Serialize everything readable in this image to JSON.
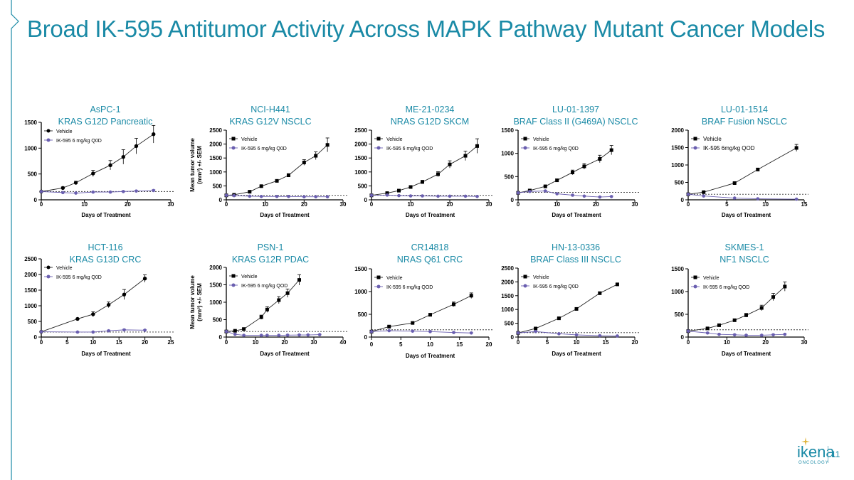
{
  "title": "Broad IK-595 Antitumor Activity Across MAPK Pathway Mutant Cancer Models",
  "page_number": "11",
  "logo": {
    "name": "ikena",
    "subtitle": "ONCOLOGY"
  },
  "colors": {
    "title": "#1a8aa6",
    "vehicle": "#000000",
    "treatment": "#6a5fb0",
    "frame": "#1a8aa6"
  },
  "chart_data": [
    {
      "type": "line",
      "model": "AsPC-1",
      "mutation": "KRAS G12D Pancreatic",
      "legend": [
        "Vehicle",
        "IK-595 6 mg/kg Q0D"
      ],
      "vehicle_marker": "circle",
      "xlabel": "Days of Treatment",
      "ylabel": "",
      "xlim": [
        0,
        30
      ],
      "xticks": [
        0,
        10,
        20,
        30
      ],
      "ylim": [
        0,
        1500
      ],
      "yticks": [
        0,
        500,
        1000,
        1500
      ],
      "baseline": 160,
      "series": [
        {
          "name": "Vehicle",
          "x": [
            0,
            5,
            8,
            12,
            16,
            19,
            22,
            26
          ],
          "y": [
            160,
            230,
            330,
            510,
            670,
            830,
            1040,
            1270
          ],
          "err": [
            0,
            20,
            30,
            60,
            90,
            140,
            150,
            170
          ]
        },
        {
          "name": "IK-595 6 mg/kg Q0D",
          "x": [
            0,
            5,
            8,
            12,
            16,
            19,
            22,
            26
          ],
          "y": [
            160,
            140,
            130,
            150,
            150,
            160,
            170,
            180
          ],
          "err": [
            0,
            10,
            10,
            10,
            10,
            10,
            10,
            15
          ]
        }
      ]
    },
    {
      "type": "line",
      "model": "NCI-H441",
      "mutation": "KRAS G12V NSCLC",
      "legend": [
        "Vehicle",
        "IK-595 6 mg/kg Q0D"
      ],
      "vehicle_marker": "square",
      "xlabel": "Days of Treatment",
      "ylabel": "Mean tumor volume (mm³) +/- SEM",
      "xlim": [
        0,
        30
      ],
      "xticks": [
        0,
        10,
        20,
        30
      ],
      "ylim": [
        0,
        2500
      ],
      "yticks": [
        0,
        500,
        1000,
        1500,
        2000,
        2500
      ],
      "baseline": 160,
      "series": [
        {
          "name": "Vehicle",
          "x": [
            0,
            2,
            6,
            9,
            13,
            16,
            20,
            23,
            26
          ],
          "y": [
            160,
            180,
            290,
            490,
            680,
            880,
            1340,
            1580,
            1970
          ],
          "err": [
            0,
            10,
            20,
            30,
            40,
            60,
            100,
            140,
            250
          ]
        },
        {
          "name": "IK-595 6 mg/kg Q0D",
          "x": [
            0,
            2,
            6,
            9,
            13,
            16,
            20,
            23,
            26
          ],
          "y": [
            160,
            150,
            130,
            120,
            120,
            120,
            110,
            110,
            110
          ],
          "err": [
            0,
            10,
            10,
            10,
            10,
            10,
            10,
            10,
            10
          ]
        }
      ]
    },
    {
      "type": "line",
      "model": "ME-21-0234",
      "mutation": "NRAS G12D SKCM",
      "legend": [
        "Vehicle",
        "IK-595 6 mg/kg QOD"
      ],
      "vehicle_marker": "square",
      "xlabel": "Days of Treatment",
      "ylabel": "",
      "xlim": [
        0,
        30
      ],
      "xticks": [
        0,
        10,
        20,
        30
      ],
      "ylim": [
        0,
        2500
      ],
      "yticks": [
        0,
        500,
        1000,
        1500,
        2000,
        2500
      ],
      "baseline": 160,
      "series": [
        {
          "name": "Vehicle",
          "x": [
            0,
            4,
            7,
            10,
            13,
            17,
            20,
            24,
            27
          ],
          "y": [
            160,
            240,
            330,
            460,
            640,
            920,
            1270,
            1580,
            1930
          ],
          "err": [
            0,
            20,
            30,
            40,
            60,
            90,
            130,
            170,
            260
          ]
        },
        {
          "name": "IK-595 6 mg/kg QOD",
          "x": [
            0,
            4,
            7,
            10,
            13,
            17,
            20,
            24,
            27
          ],
          "y": [
            160,
            170,
            150,
            140,
            140,
            130,
            130,
            130,
            120
          ],
          "err": [
            0,
            10,
            10,
            10,
            10,
            10,
            10,
            10,
            10
          ]
        }
      ]
    },
    {
      "type": "line",
      "model": "LU-01-1397",
      "mutation": "BRAF Class II (G469A) NSCLC",
      "legend": [
        "Vehicle",
        "IK-595 6 mg/kg Q0D"
      ],
      "vehicle_marker": "square",
      "xlabel": "Days of Treatment",
      "ylabel": "",
      "xlim": [
        0,
        30
      ],
      "xticks": [
        0,
        10,
        20,
        30
      ],
      "ylim": [
        0,
        1500
      ],
      "yticks": [
        0,
        500,
        1000,
        1500
      ],
      "baseline": 160,
      "series": [
        {
          "name": "Vehicle",
          "x": [
            0,
            3,
            7,
            10,
            14,
            17,
            21,
            24
          ],
          "y": [
            150,
            200,
            290,
            420,
            590,
            720,
            880,
            1070
          ],
          "err": [
            0,
            15,
            20,
            30,
            50,
            60,
            80,
            100
          ]
        },
        {
          "name": "IK-595 6 mg/kg Q0D",
          "x": [
            0,
            3,
            7,
            10,
            14,
            17,
            21,
            24
          ],
          "y": [
            150,
            180,
            190,
            130,
            100,
            80,
            60,
            70
          ],
          "err": [
            0,
            10,
            15,
            10,
            10,
            10,
            10,
            10
          ]
        }
      ]
    },
    {
      "type": "line",
      "model": "LU-01-1514",
      "mutation": "BRAF Fusion NSCLC",
      "legend": [
        "Vehicle",
        "IK-595 6mg/kg QOD"
      ],
      "vehicle_marker": "square",
      "xlabel": "Days of Treatment",
      "ylabel": "",
      "xlim": [
        0,
        15
      ],
      "xticks": [
        0,
        5,
        10,
        15
      ],
      "ylim": [
        0,
        2000
      ],
      "yticks": [
        0,
        500,
        1000,
        1500,
        2000
      ],
      "baseline": 160,
      "series": [
        {
          "name": "Vehicle",
          "x": [
            0,
            2,
            6,
            9,
            14
          ],
          "y": [
            160,
            220,
            480,
            870,
            1490
          ],
          "err": [
            0,
            15,
            20,
            30,
            100
          ]
        },
        {
          "name": "IK-595 6mg/kg QOD",
          "x": [
            0,
            2,
            6,
            9,
            14
          ],
          "y": [
            160,
            110,
            50,
            30,
            20
          ],
          "err": [
            0,
            10,
            5,
            5,
            5
          ]
        }
      ]
    },
    {
      "type": "line",
      "model": "HCT-116",
      "mutation": "KRAS G13D CRC",
      "legend": [
        "Vehicle",
        "IK-595 6 mg/kg Q0D"
      ],
      "vehicle_marker": "circle",
      "xlabel": "Days of Treatment",
      "ylabel": "",
      "xlim": [
        0,
        25
      ],
      "xticks": [
        0,
        5,
        10,
        15,
        20,
        25
      ],
      "ylim": [
        0,
        2500
      ],
      "yticks": [
        0,
        500,
        1000,
        1500,
        2000,
        2500
      ],
      "baseline": 160,
      "series": [
        {
          "name": "Vehicle",
          "x": [
            0,
            7,
            10,
            13,
            16,
            20
          ],
          "y": [
            170,
            580,
            730,
            1030,
            1360,
            1870
          ],
          "err": [
            0,
            20,
            80,
            90,
            160,
            120
          ]
        },
        {
          "name": "IK-595 6 mg/kg Q0D",
          "x": [
            0,
            7,
            10,
            13,
            16,
            20
          ],
          "y": [
            170,
            160,
            160,
            200,
            230,
            220
          ],
          "err": [
            0,
            10,
            10,
            20,
            20,
            20
          ]
        }
      ]
    },
    {
      "type": "line",
      "model": "PSN-1",
      "mutation": "KRAS G12R PDAC",
      "legend": [
        "Vehicle",
        "IK-595 6 mg/kg QOD"
      ],
      "vehicle_marker": "square",
      "xlabel": "Days of Treatment",
      "ylabel": "Mean tumor volume (mm³) +/- SEM",
      "xlim": [
        0,
        40
      ],
      "xticks": [
        0,
        10,
        20,
        30,
        40
      ],
      "ylim": [
        0,
        2000
      ],
      "yticks": [
        0,
        500,
        1000,
        1500,
        2000
      ],
      "baseline": 160,
      "series": [
        {
          "name": "Vehicle",
          "x": [
            0,
            3,
            6,
            12,
            14,
            18,
            21,
            25
          ],
          "y": [
            160,
            180,
            230,
            570,
            790,
            1060,
            1260,
            1640
          ],
          "err": [
            0,
            15,
            20,
            60,
            80,
            100,
            120,
            150
          ]
        },
        {
          "name": "IK-595 6 mg/kg QOD",
          "x": [
            0,
            3,
            6,
            12,
            14,
            18,
            21,
            25,
            28,
            32
          ],
          "y": [
            160,
            80,
            50,
            50,
            50,
            50,
            55,
            60,
            60,
            70
          ],
          "err": [
            0,
            10,
            10,
            10,
            10,
            10,
            10,
            10,
            10,
            10
          ]
        }
      ]
    },
    {
      "type": "line",
      "model": "CR14818",
      "mutation": "NRAS Q61 CRC",
      "legend": [
        "Vehicle",
        "IK-595 6 mg/kg QOD"
      ],
      "vehicle_marker": "square",
      "xlabel": "Days of Treatment",
      "ylabel": "",
      "xlim": [
        0,
        20
      ],
      "xticks": [
        0,
        5,
        10,
        15,
        20
      ],
      "ylim": [
        0,
        1500
      ],
      "yticks": [
        0,
        500,
        1000,
        1500
      ],
      "baseline": 160,
      "series": [
        {
          "name": "Vehicle",
          "x": [
            0,
            3,
            7,
            10,
            14,
            17
          ],
          "y": [
            120,
            230,
            310,
            490,
            720,
            910
          ],
          "err": [
            0,
            15,
            20,
            30,
            50,
            60
          ]
        },
        {
          "name": "IK-595 6 mg/kg QOD",
          "x": [
            0,
            3,
            7,
            10,
            14,
            17
          ],
          "y": [
            120,
            140,
            130,
            120,
            100,
            90
          ],
          "err": [
            0,
            10,
            10,
            10,
            10,
            10
          ]
        }
      ]
    },
    {
      "type": "line",
      "model": "HN-13-0336",
      "mutation": "BRAF Class III NSCLC",
      "legend": [
        "Vehicle",
        "IK-595 6 mg/kg Q0D"
      ],
      "vehicle_marker": "square",
      "xlabel": "Days of Treatment",
      "ylabel": "",
      "xlim": [
        0,
        20
      ],
      "xticks": [
        0,
        5,
        10,
        15,
        20
      ],
      "ylim": [
        0,
        2500
      ],
      "yticks": [
        0,
        500,
        1000,
        1500,
        2000,
        2500
      ],
      "baseline": 160,
      "series": [
        {
          "name": "Vehicle",
          "x": [
            0,
            3,
            7,
            10,
            14,
            17
          ],
          "y": [
            150,
            310,
            680,
            1020,
            1590,
            1910
          ],
          "err": [
            0,
            20,
            30,
            40,
            50,
            40
          ]
        },
        {
          "name": "IK-595 6 mg/kg Q0D",
          "x": [
            0,
            3,
            7,
            10,
            14,
            17
          ],
          "y": [
            150,
            200,
            120,
            80,
            50,
            40
          ],
          "err": [
            0,
            20,
            10,
            10,
            10,
            10
          ]
        }
      ]
    },
    {
      "type": "line",
      "model": "SKMES-1",
      "mutation": "NF1 NSCLC",
      "legend": [
        "Vehicle",
        "IK-595 6 mg/kg QOD"
      ],
      "vehicle_marker": "square",
      "xlabel": "Days of Treatment",
      "ylabel": "",
      "xlim": [
        0,
        30
      ],
      "xticks": [
        0,
        10,
        20,
        30
      ],
      "ylim": [
        0,
        1500
      ],
      "yticks": [
        0,
        500,
        1000,
        1500
      ],
      "baseline": 160,
      "series": [
        {
          "name": "Vehicle",
          "x": [
            0,
            5,
            8,
            12,
            15,
            19,
            22,
            25
          ],
          "y": [
            130,
            190,
            260,
            370,
            480,
            640,
            880,
            1110
          ],
          "err": [
            0,
            15,
            20,
            25,
            40,
            60,
            80,
            100
          ]
        },
        {
          "name": "IK-595 6 mg/kg QOD",
          "x": [
            0,
            5,
            8,
            12,
            15,
            19,
            22,
            25
          ],
          "y": [
            130,
            90,
            60,
            50,
            40,
            40,
            50,
            60
          ],
          "err": [
            0,
            10,
            10,
            10,
            10,
            10,
            10,
            10
          ]
        }
      ]
    }
  ]
}
